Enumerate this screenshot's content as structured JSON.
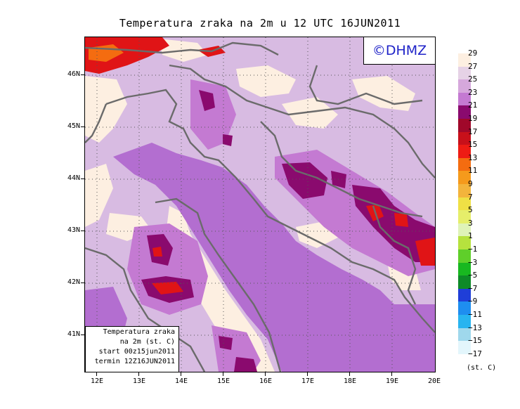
{
  "title": "Temperatura zraka na 2m u 12 UTC 16JUN2011",
  "logo": "©DHMZ",
  "info_box": [
    "Temperatura zraka",
    "na 2m (st. C)",
    "start 00z15jun2011",
    "termin 12Z16JUN2011"
  ],
  "lat_labels": [
    "46N",
    "45N",
    "44N",
    "43N",
    "42N",
    "41N"
  ],
  "lon_labels": [
    "12E",
    "13E",
    "14E",
    "15E",
    "16E",
    "17E",
    "18E",
    "19E",
    "20E"
  ],
  "colorbar": {
    "labels": [
      "29",
      "27",
      "25",
      "23",
      "21",
      "19",
      "17",
      "15",
      "13",
      "11",
      "9",
      "7",
      "5",
      "3",
      "1",
      "−1",
      "−3",
      "−5",
      "−7",
      "−9",
      "−11",
      "−13",
      "−15",
      "−17"
    ],
    "colors": [
      "#fdefe1",
      "#e6d2e6",
      "#d6a8dc",
      "#c47ad2",
      "#8a0a6e",
      "#a0082a",
      "#c8101a",
      "#ee1c14",
      "#f46c10",
      "#f59a1c",
      "#f3b43c",
      "#efe045",
      "#e6ee6a",
      "#dff3b8",
      "#b6e23e",
      "#5fcf2a",
      "#18b820",
      "#0e8a28",
      "#1f3ed8",
      "#1e8ef0",
      "#28b4f0",
      "#9fd8ec",
      "#e3f6fc"
    ],
    "unit": "(st. C)"
  },
  "palette": {
    "sea": "#b36ed0",
    "land": "#d8bbe2",
    "cream": "#fdefe1",
    "warm": "#c47ad2",
    "hot": "#8a0a6e",
    "red": "#e01416",
    "orange": "#f46c10",
    "coast": "#6b6b6b"
  }
}
